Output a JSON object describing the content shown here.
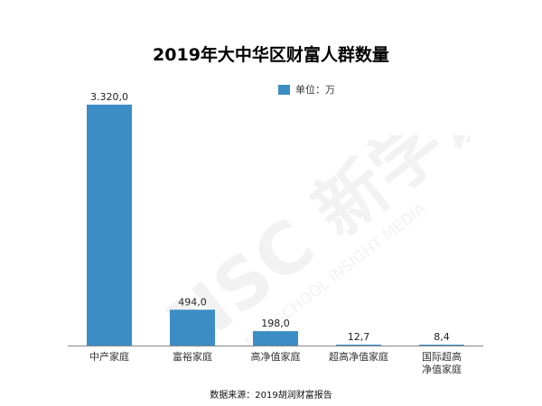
{
  "chart_data": {
    "type": "bar",
    "title": "2019年大中华区财富人群数量",
    "unit_legend": "单位：万",
    "categories": [
      "中产家庭",
      "富裕家庭",
      "高净值家庭",
      "超高净值家庭",
      "国际超高净值家庭"
    ],
    "category_lines": [
      [
        "中产家庭"
      ],
      [
        "富裕家庭"
      ],
      [
        "高净值家庭"
      ],
      [
        "超高净值家庭"
      ],
      [
        "国际超高",
        "净值家庭"
      ]
    ],
    "values": [
      3320.0,
      494.0,
      198.0,
      12.7,
      8.4
    ],
    "value_labels": [
      "3.320,0",
      "494,0",
      "198,0",
      "12,7",
      "8,4"
    ],
    "bar_color": "#3C8DC5",
    "ylim": [
      0,
      3320
    ],
    "grid": false,
    "legend_position": "top-right",
    "source": "数据来源：2019胡润财富报告"
  },
  "watermark": {
    "text_main": "NSC 新学说",
    "text_sub": "NEWSCHOOL INSIGHT MEDIA",
    "color": "#9EA3A8"
  }
}
